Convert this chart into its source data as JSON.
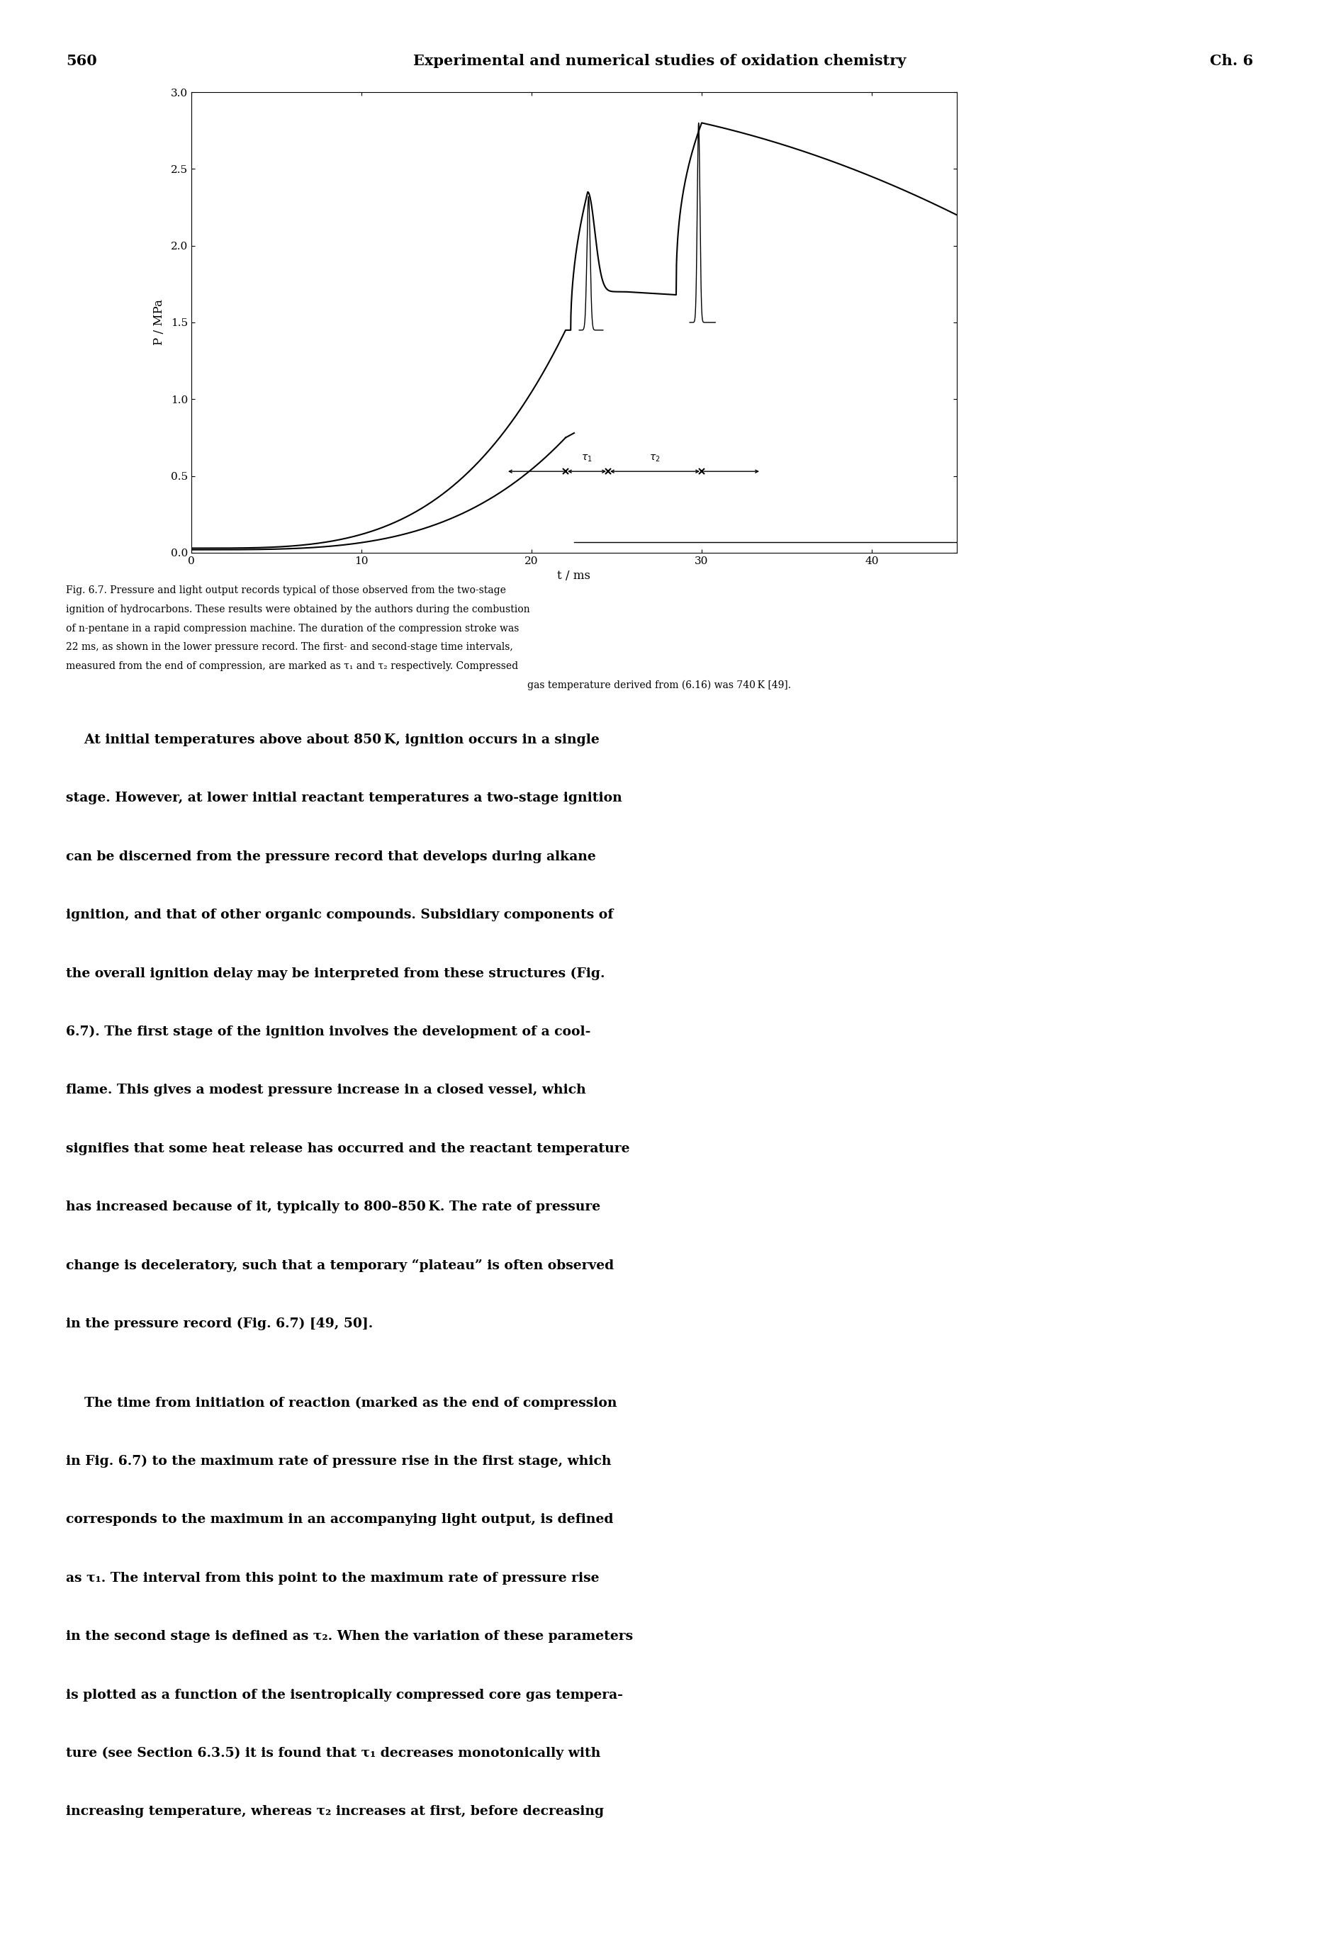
{
  "page_number": "560",
  "header_title": "Experimental and numerical studies of oxidation chemistry",
  "header_chapter": "Ch. 6",
  "xlabel": "t / ms",
  "ylabel": "P / MPa",
  "xlim": [
    0,
    45
  ],
  "ylim": [
    0.0,
    3.0
  ],
  "xticks": [
    0,
    10,
    20,
    30,
    40
  ],
  "yticks": [
    0.0,
    0.5,
    1.0,
    1.5,
    2.0,
    2.5,
    3.0
  ],
  "background_color": "#ffffff",
  "line_color": "#000000",
  "tau_y": 0.53,
  "tau1_x_start": 22.0,
  "tau1_x_end": 24.5,
  "tau2_x_start": 24.5,
  "tau2_x_end": 30.0,
  "fig_caption_lines": [
    "Fig. 6.7. Pressure and light output records typical of those observed from the two-stage",
    "ignition of hydrocarbons. These results were obtained by the authors during the combustion",
    "of n-pentane in a rapid compression machine. The duration of the compression stroke was",
    "22 ms, as shown in the lower pressure record. The first- and second-stage time intervals,",
    "measured from the end of compression, are marked as τ₁ and τ₂ respectively. Compressed",
    "gas temperature derived from (6.16) was 740 K [49]."
  ],
  "fig_caption_italic_word": "n",
  "body_paragraph1_lines": [
    "    At initial temperatures above about 850 K, ignition occurs in a single",
    "stage. However, at lower initial reactant temperatures a two-stage ignition",
    "can be discerned from the pressure record that develops during alkane",
    "ignition, and that of other organic compounds. Subsidiary components of",
    "the overall ignition delay may be interpreted from these structures (Fig.",
    "6.7). The first stage of the ignition involves the development of a cool-",
    "flame. This gives a modest pressure increase in a closed vessel, which",
    "signifies that some heat release has occurred and the reactant temperature",
    "has increased because of it, typically to 800–850 K. The rate of pressure",
    "change is deceleratory, such that a temporary “plateau” is often observed",
    "in the pressure record (Fig. 6.7) [49, 50]."
  ],
  "body_paragraph2_lines": [
    "    The time from initiation of reaction (marked as the end of compression",
    "in Fig. 6.7) to the maximum rate of pressure rise in the first stage, which",
    "corresponds to the maximum in an accompanying light output, is defined",
    "as τ₁. The interval from this point to the maximum rate of pressure rise",
    "in the second stage is defined as τ₂. When the variation of these parameters",
    "is plotted as a function of the isentropically compressed core gas tempera-",
    "ture (see Section 6.3.5) it is found that τ₁ decreases monotonically with",
    "increasing temperature, whereas τ₂ increases at first, before decreasing"
  ]
}
